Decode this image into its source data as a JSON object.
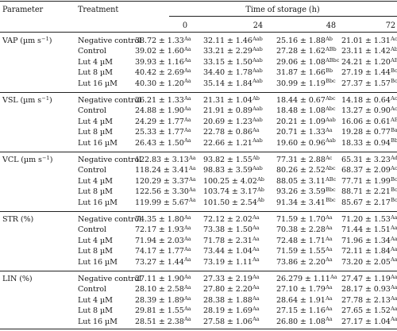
{
  "header": {
    "parameter": "Parameter",
    "treatment": "Treatment",
    "time_title": "Time of storage (h)",
    "times": [
      "0",
      "24",
      "48",
      "72"
    ]
  },
  "groups": [
    {
      "parameter": "VAP (µm s",
      "parameter_sup": "−1",
      "parameter_tail": ")",
      "rows": [
        {
          "treatment": "Negative control",
          "cells": [
            [
              "38.72 ± 1.33",
              "Aa"
            ],
            [
              "32.11 ± 1.46",
              "Aab"
            ],
            [
              "25.16 ± 1.88",
              "Ab"
            ],
            [
              "21.01 ± 1.31",
              "Ac"
            ]
          ]
        },
        {
          "treatment": "Control",
          "cells": [
            [
              "39.02 ± 1.60",
              "Aa"
            ],
            [
              "33.21 ± 2.29",
              "Aab"
            ],
            [
              "27.28 ± 1.62",
              "ABb"
            ],
            [
              "23.11 ± 1.42",
              "Ab"
            ]
          ]
        },
        {
          "treatment": "Lut 4 µM",
          "cells": [
            [
              "39.93 ± 1.16",
              "Aa"
            ],
            [
              "33.15 ± 1.50",
              "Aab"
            ],
            [
              "29.06 ± 1.08",
              "ABbc"
            ],
            [
              "24.21 ± 1.20",
              "ABc"
            ]
          ]
        },
        {
          "treatment": "Lut 8 µM",
          "cells": [
            [
              "40.42 ± 2.69",
              "Aa"
            ],
            [
              "34.40 ± 1.78",
              "Aab"
            ],
            [
              "31.87 ± 1.66",
              "Bb"
            ],
            [
              "27.19 ± 1.44",
              "Bc"
            ]
          ]
        },
        {
          "treatment": "Lut 16 µM",
          "cells": [
            [
              "40.30 ± 1.20",
              "Aa"
            ],
            [
              "35.14 ± 1.84",
              "Aab"
            ],
            [
              "30.99 ± 1.19",
              "Bbc"
            ],
            [
              "27.37 ± 1.57",
              "Bc"
            ]
          ]
        }
      ]
    },
    {
      "parameter": "VSL (µm s",
      "parameter_sup": "−1",
      "parameter_tail": ")",
      "rows": [
        {
          "treatment": "Negative control",
          "cells": [
            [
              "26.21 ± 1.33",
              "Aa"
            ],
            [
              "21.31 ± 1.04",
              "Ab"
            ],
            [
              "18.44 ± 0.67",
              "Abc"
            ],
            [
              "14.18 ± 0.64",
              "Ac"
            ]
          ]
        },
        {
          "treatment": "Control",
          "cells": [
            [
              "24.88 ± 1.90",
              "Aa"
            ],
            [
              "21.91 ± 0.89",
              "Aab"
            ],
            [
              "18.48 ± 1.08",
              "Abc"
            ],
            [
              "13.27 ± 0.90",
              "Ac"
            ]
          ]
        },
        {
          "treatment": "Lut 4 µM",
          "cells": [
            [
              "24.29 ± 1.77",
              "Aa"
            ],
            [
              "20.69 ± 1.23",
              "Aab"
            ],
            [
              "20.21 ± 1.09",
              "Aab"
            ],
            [
              "16.06 ± 0.61",
              "ABb"
            ]
          ]
        },
        {
          "treatment": "Lut 8 µM",
          "cells": [
            [
              "25.33 ± 1.77",
              "Aa"
            ],
            [
              "22.78 ± 0.86",
              "Aa"
            ],
            [
              "20.71 ± 1.33",
              "Aa"
            ],
            [
              "19.28 ± 0.77",
              "Ba"
            ]
          ]
        },
        {
          "treatment": "Lut 16 µM",
          "cells": [
            [
              "26.43 ± 1.50",
              "Aa"
            ],
            [
              "22.66 ± 1.21",
              "Aab"
            ],
            [
              "19.60 ± 0.96",
              "Aab"
            ],
            [
              "18.33 ± 0.94",
              "Bb"
            ]
          ]
        }
      ]
    },
    {
      "parameter": "VCL (µm s",
      "parameter_sup": "−1",
      "parameter_tail": ")",
      "rows": [
        {
          "treatment": "Negative control",
          "cells": [
            [
              "122.83 ± 3.13",
              "Aa"
            ],
            [
              "93.82 ± 1.55",
              "Ab"
            ],
            [
              "77.31 ± 2.88",
              "Ac"
            ],
            [
              "65.31 ± 3.23",
              "Ad"
            ]
          ]
        },
        {
          "treatment": "Control",
          "cells": [
            [
              "118.24 ± 3.41",
              "Aa"
            ],
            [
              "98.83 ± 3.59",
              "Aab"
            ],
            [
              "80.26 ± 2.52",
              "Abc"
            ],
            [
              "68.37 ± 2.09",
              "Ac"
            ]
          ]
        },
        {
          "treatment": "Lut 4 µM",
          "cells": [
            [
              "120.29 ± 3.37",
              "Aa"
            ],
            [
              "100.25 ± 4.02",
              "Ab"
            ],
            [
              "88.05 ± 3.11",
              "ABc"
            ],
            [
              "77.71 ± 1.99",
              "Bc"
            ]
          ]
        },
        {
          "treatment": "Lut 8 µM",
          "cells": [
            [
              "122.56 ± 3.30",
              "Aa"
            ],
            [
              "103.74 ± 3.17",
              "Ab"
            ],
            [
              "93.26 ± 3.59",
              "Bbc"
            ],
            [
              "88.71 ± 2.21",
              "Bc"
            ]
          ]
        },
        {
          "treatment": "Lut 16 µM",
          "cells": [
            [
              "119.99 ± 5.67",
              "Aa"
            ],
            [
              "101.50 ± 2.54",
              "Ab"
            ],
            [
              "91.34 ± 3.41",
              "Bbc"
            ],
            [
              "85.67 ± 2.17",
              "Bc"
            ]
          ]
        }
      ]
    },
    {
      "parameter": "STR (%)",
      "parameter_sup": "",
      "parameter_tail": "",
      "rows": [
        {
          "treatment": "Negative control",
          "cells": [
            [
              "74.35 ± 1.80",
              "Aa"
            ],
            [
              "72.12 ± 2.02",
              "Aa"
            ],
            [
              "71.59 ± 1.70",
              "Aa"
            ],
            [
              "71.20 ± 1.53",
              "Aa"
            ]
          ]
        },
        {
          "treatment": "Control",
          "cells": [
            [
              "72.17 ± 1.93",
              "Aa"
            ],
            [
              "73.38 ± 1.50",
              "Aa"
            ],
            [
              "70.38 ± 2.28",
              "Aa"
            ],
            [
              "71.44 ± 1.51",
              "Aa"
            ]
          ]
        },
        {
          "treatment": "Lut 4 µM",
          "cells": [
            [
              "71.94 ± 2.03",
              "Aa"
            ],
            [
              "71.78 ± 2.31",
              "Aa"
            ],
            [
              "72.48 ± 1.71",
              "Aa"
            ],
            [
              "71.96 ± 1.34",
              "Aa"
            ]
          ]
        },
        {
          "treatment": "Lut 8 µM",
          "cells": [
            [
              "74.17 ± 1.77",
              "Aa"
            ],
            [
              "73.44 ± 1.04",
              "Aa"
            ],
            [
              "71.59 ± 1.55",
              "Aa"
            ],
            [
              "72.11 ± 1.84",
              "Aa"
            ]
          ]
        },
        {
          "treatment": "Lut 16 µM",
          "cells": [
            [
              "73.27 ± 1.44",
              "Aa"
            ],
            [
              "73.19 ± 1.11",
              "Aa"
            ],
            [
              "73.86 ± 2.20",
              "Aa"
            ],
            [
              "73.20 ± 2.05",
              "Aa"
            ]
          ]
        }
      ]
    },
    {
      "parameter": "LIN (%)",
      "parameter_sup": "",
      "parameter_tail": "",
      "rows": [
        {
          "treatment": "Negative control",
          "cells": [
            [
              "27.11 ± 1.90",
              "Aa"
            ],
            [
              "27.33 ± 2.19",
              "Aa"
            ],
            [
              "26.279 ± 1.11",
              "Aa"
            ],
            [
              "27.47 ± 1.19",
              "Aa"
            ]
          ]
        },
        {
          "treatment": "Control",
          "cells": [
            [
              "28.10 ± 2.58",
              "Aa"
            ],
            [
              "27.80 ± 2.20",
              "Aa"
            ],
            [
              "27.10 ± 1.79",
              "Aa"
            ],
            [
              "28.17 ± 0.93",
              "Aa"
            ]
          ]
        },
        {
          "treatment": "Lut 4 µM",
          "cells": [
            [
              "28.39 ± 1.89",
              "Aa"
            ],
            [
              "28.38 ± 1.88",
              "Aa"
            ],
            [
              "28.64 ± 1.91",
              "Aa"
            ],
            [
              "27.78 ± 2.13",
              "Aa"
            ]
          ]
        },
        {
          "treatment": "Lut 8 µM",
          "cells": [
            [
              "29.81 ± 1.55",
              "Aa"
            ],
            [
              "28.19 ± 1.69",
              "Aa"
            ],
            [
              "27.15 ± 1.16",
              "Aa"
            ],
            [
              "27.65 ± 1.52",
              "Aa"
            ]
          ]
        },
        {
          "treatment": "Lut 16 µM",
          "cells": [
            [
              "28.51 ± 2.38",
              "Aa"
            ],
            [
              "27.58 ± 1.06",
              "Aa"
            ],
            [
              "26.80 ± 1.08",
              "Aa"
            ],
            [
              "27.17 ± 1.04",
              "Aa"
            ]
          ]
        }
      ]
    }
  ]
}
